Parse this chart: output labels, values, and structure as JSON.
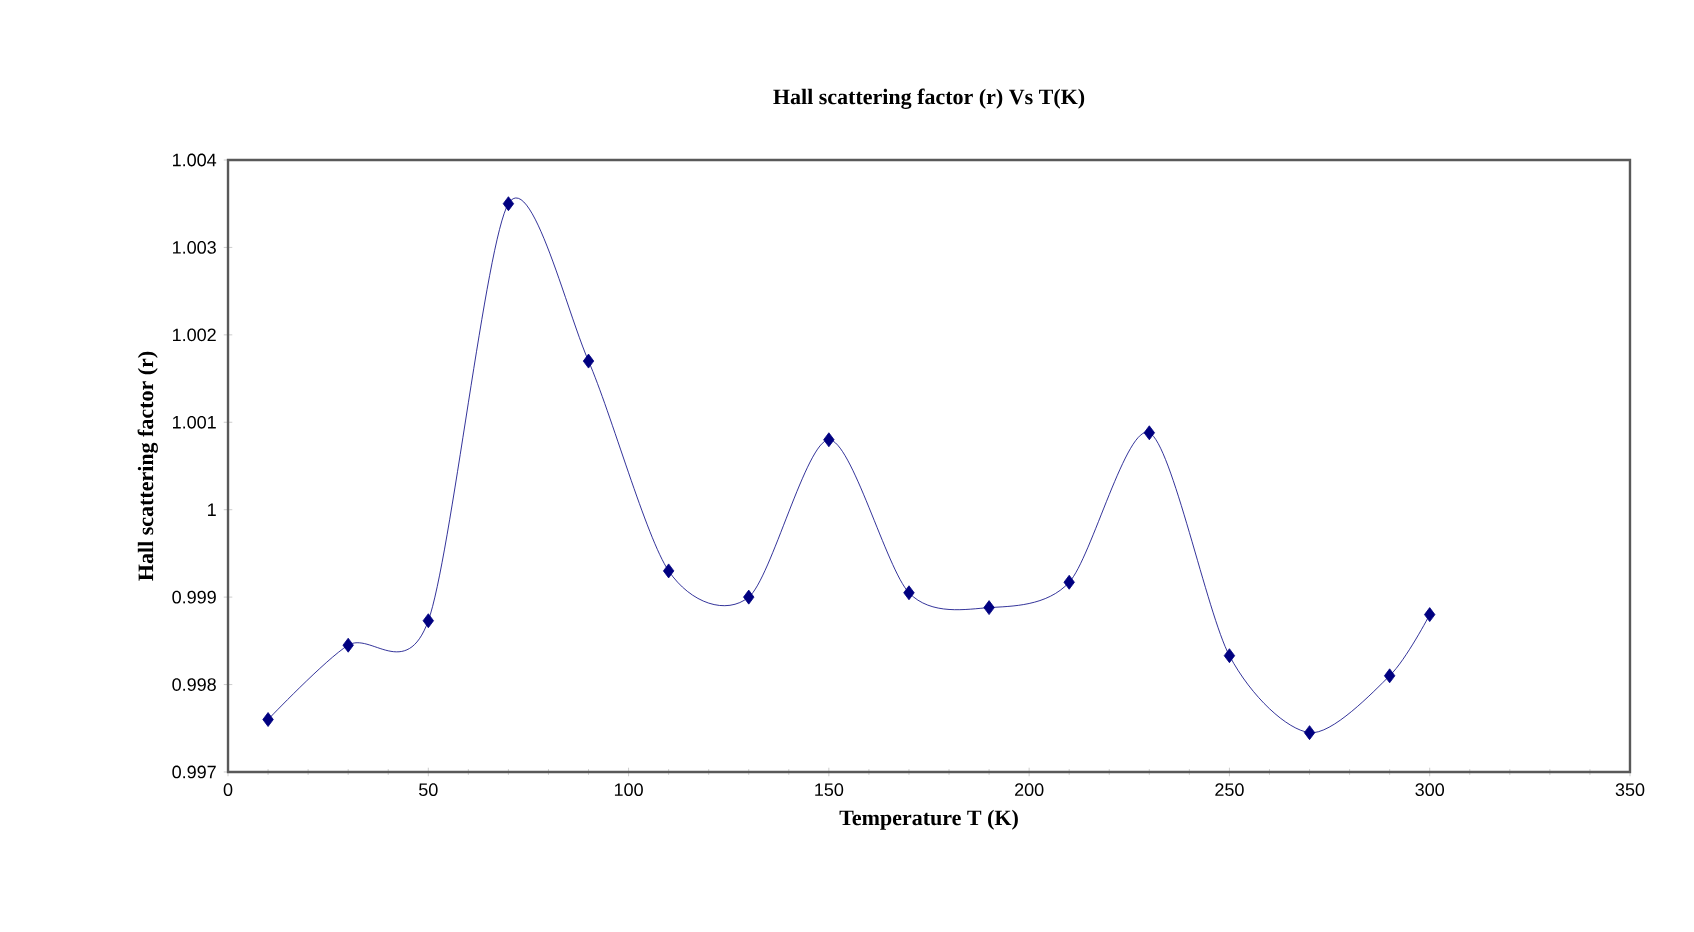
{
  "chart_data": {
    "type": "line",
    "title": "Hall scattering factor (r) Vs  T(K)",
    "xlabel": "Temperature T (K)",
    "ylabel": "Hall scattering factor (r)",
    "x": [
      10,
      30,
      50,
      70,
      90,
      110,
      130,
      150,
      170,
      190,
      210,
      230,
      250,
      270,
      290,
      300
    ],
    "series": [
      {
        "color": "#000080",
        "values": [
          0.9976,
          0.99845,
          0.99873,
          1.0035,
          1.0017,
          0.9993,
          0.999,
          1.0008,
          0.99905,
          0.99888,
          0.99917,
          1.00088,
          0.99833,
          0.99745,
          0.9981,
          0.9988
        ]
      }
    ],
    "xlim": [
      0,
      350
    ],
    "xticks": [
      0,
      50,
      100,
      150,
      200,
      250,
      300,
      350
    ],
    "ylim": [
      0.997,
      1.004
    ],
    "yticks": [
      0.997,
      0.998,
      0.999,
      1,
      1.001,
      1.002,
      1.003,
      1.004
    ],
    "marker": "diamond",
    "line_style": "solid",
    "grid": false
  }
}
